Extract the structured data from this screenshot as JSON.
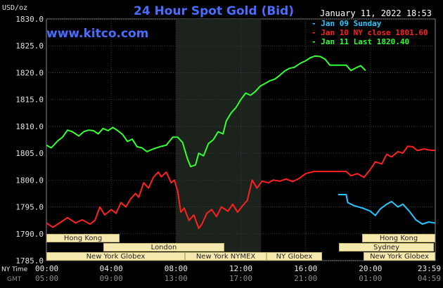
{
  "title": "24 Hour Spot Gold (Bid)",
  "watermark": "www.kitco.com",
  "unit": "USD/oz",
  "timestamp": "January 11, 2022 18:53",
  "row_labels": {
    "ny": "NY Time",
    "gmt": "GMT"
  },
  "legend": [
    {
      "dash": "-",
      "label": "Jan 09 Sunday",
      "color": "#22c8ff"
    },
    {
      "dash": "-",
      "label": "Jan 10 NY close 1801.60",
      "color": "#ff2020"
    },
    {
      "dash": "-",
      "label": "Jan 11 Last 1820.40",
      "color": "#33ff33"
    }
  ],
  "sessions": {
    "row1": [
      "Hong Kong",
      "Hong Kong"
    ],
    "row2": [
      "London",
      "Sydney"
    ],
    "row3": [
      "New York Globex",
      "New York NYMEX",
      "NY Globex",
      "New York Globex"
    ]
  },
  "chart_data": {
    "type": "line",
    "title": "24 Hour Spot Gold (Bid)",
    "ylabel": "USD/oz",
    "ylim": [
      1785,
      1830
    ],
    "y_ticks": [
      "1830.0",
      "1825.0",
      "1820.0",
      "1815.0",
      "1810.0",
      "1805.0",
      "1800.0",
      "1795.0",
      "1790.0",
      "1785.0"
    ],
    "x_ticks_ny": [
      "00:00",
      "04:00",
      "08:00",
      "12:00",
      "16:00",
      "20:00",
      "23:59"
    ],
    "x_ticks_gmt": [
      "05:00",
      "09:00",
      "13:00",
      "17:00",
      "21:00",
      "01:00",
      "04:59"
    ],
    "grid": true,
    "highlight_band_hours": [
      8.0,
      13.25
    ],
    "series": [
      {
        "name": "Jan 09 Sunday",
        "color": "#22c8ff",
        "points": [
          [
            18.0,
            1797.3
          ],
          [
            18.5,
            1797.3
          ],
          [
            18.6,
            1795.8
          ],
          [
            19.0,
            1795.2
          ],
          [
            19.5,
            1794.8
          ],
          [
            20.0,
            1794.2
          ],
          [
            20.3,
            1793.4
          ],
          [
            20.6,
            1794.6
          ],
          [
            21.0,
            1795.5
          ],
          [
            21.3,
            1796.0
          ],
          [
            21.7,
            1795.0
          ],
          [
            22.0,
            1795.5
          ],
          [
            22.4,
            1794.2
          ],
          [
            22.8,
            1792.6
          ],
          [
            23.2,
            1791.8
          ],
          [
            23.6,
            1792.2
          ],
          [
            23.99,
            1792.0
          ]
        ]
      },
      {
        "name": "Jan 10 NY close 1801.60",
        "color": "#ff2020",
        "points": [
          [
            0.0,
            1792.0
          ],
          [
            0.4,
            1791.2
          ],
          [
            0.9,
            1792.2
          ],
          [
            1.3,
            1793.0
          ],
          [
            1.8,
            1792.0
          ],
          [
            2.2,
            1792.6
          ],
          [
            2.7,
            1791.8
          ],
          [
            3.0,
            1792.5
          ],
          [
            3.3,
            1795.0
          ],
          [
            3.6,
            1793.5
          ],
          [
            4.0,
            1794.5
          ],
          [
            4.3,
            1793.8
          ],
          [
            4.6,
            1795.8
          ],
          [
            4.9,
            1795.0
          ],
          [
            5.2,
            1796.5
          ],
          [
            5.5,
            1797.5
          ],
          [
            5.7,
            1796.8
          ],
          [
            6.0,
            1799.5
          ],
          [
            6.3,
            1798.5
          ],
          [
            6.6,
            1800.5
          ],
          [
            6.9,
            1801.5
          ],
          [
            7.1,
            1800.6
          ],
          [
            7.4,
            1801.5
          ],
          [
            7.7,
            1799.5
          ],
          [
            7.9,
            1800.0
          ],
          [
            8.1,
            1798.0
          ],
          [
            8.3,
            1794.0
          ],
          [
            8.5,
            1794.8
          ],
          [
            8.8,
            1792.5
          ],
          [
            9.1,
            1793.5
          ],
          [
            9.4,
            1791.0
          ],
          [
            9.6,
            1791.8
          ],
          [
            9.9,
            1793.8
          ],
          [
            10.2,
            1794.5
          ],
          [
            10.5,
            1793.2
          ],
          [
            10.8,
            1795.0
          ],
          [
            11.2,
            1794.2
          ],
          [
            11.5,
            1795.5
          ],
          [
            11.8,
            1794.0
          ],
          [
            12.1,
            1795.2
          ],
          [
            12.4,
            1796.2
          ],
          [
            12.7,
            1800.0
          ],
          [
            13.0,
            1798.5
          ],
          [
            13.3,
            1799.8
          ],
          [
            13.7,
            1799.5
          ],
          [
            14.0,
            1800.0
          ],
          [
            14.4,
            1799.8
          ],
          [
            14.8,
            1800.2
          ],
          [
            15.2,
            1799.7
          ],
          [
            15.6,
            1800.3
          ],
          [
            16.0,
            1801.2
          ],
          [
            16.5,
            1801.6
          ],
          [
            17.0,
            1801.6
          ],
          [
            17.5,
            1801.6
          ],
          [
            18.0,
            1801.6
          ],
          [
            18.5,
            1801.6
          ],
          [
            18.8,
            1800.8
          ],
          [
            19.2,
            1801.2
          ],
          [
            19.6,
            1800.5
          ],
          [
            20.0,
            1802.0
          ],
          [
            20.3,
            1803.4
          ],
          [
            20.7,
            1803.0
          ],
          [
            21.0,
            1804.8
          ],
          [
            21.3,
            1804.3
          ],
          [
            21.7,
            1805.3
          ],
          [
            22.0,
            1805.0
          ],
          [
            22.3,
            1806.3
          ],
          [
            22.6,
            1806.2
          ],
          [
            22.9,
            1805.5
          ],
          [
            23.3,
            1805.8
          ],
          [
            23.6,
            1805.6
          ],
          [
            23.99,
            1805.5
          ]
        ]
      },
      {
        "name": "Jan 11 Last 1820.40",
        "color": "#33ff33",
        "points": [
          [
            0.0,
            1806.5
          ],
          [
            0.3,
            1806.0
          ],
          [
            0.7,
            1807.3
          ],
          [
            1.0,
            1808.0
          ],
          [
            1.3,
            1809.3
          ],
          [
            1.6,
            1809.0
          ],
          [
            2.0,
            1808.2
          ],
          [
            2.3,
            1809.0
          ],
          [
            2.6,
            1809.3
          ],
          [
            2.9,
            1809.2
          ],
          [
            3.2,
            1808.6
          ],
          [
            3.5,
            1809.6
          ],
          [
            3.8,
            1809.2
          ],
          [
            4.1,
            1809.8
          ],
          [
            4.4,
            1809.2
          ],
          [
            4.7,
            1808.5
          ],
          [
            5.0,
            1807.2
          ],
          [
            5.3,
            1807.6
          ],
          [
            5.6,
            1806.2
          ],
          [
            5.9,
            1806.0
          ],
          [
            6.2,
            1805.3
          ],
          [
            6.6,
            1805.8
          ],
          [
            7.0,
            1806.2
          ],
          [
            7.4,
            1806.5
          ],
          [
            7.8,
            1808.0
          ],
          [
            8.1,
            1808.0
          ],
          [
            8.4,
            1807.0
          ],
          [
            8.7,
            1804.0
          ],
          [
            8.9,
            1802.5
          ],
          [
            9.2,
            1802.8
          ],
          [
            9.4,
            1805.0
          ],
          [
            9.7,
            1804.5
          ],
          [
            10.0,
            1806.8
          ],
          [
            10.3,
            1807.5
          ],
          [
            10.6,
            1809.0
          ],
          [
            10.9,
            1808.6
          ],
          [
            11.1,
            1811.0
          ],
          [
            11.4,
            1812.5
          ],
          [
            11.7,
            1813.5
          ],
          [
            12.0,
            1815.0
          ],
          [
            12.3,
            1816.2
          ],
          [
            12.6,
            1815.8
          ],
          [
            12.9,
            1816.5
          ],
          [
            13.2,
            1817.5
          ],
          [
            13.5,
            1818.0
          ],
          [
            13.8,
            1818.5
          ],
          [
            14.1,
            1818.8
          ],
          [
            14.4,
            1819.5
          ],
          [
            14.7,
            1820.3
          ],
          [
            15.0,
            1820.8
          ],
          [
            15.3,
            1821.0
          ],
          [
            15.7,
            1821.8
          ],
          [
            16.0,
            1822.2
          ],
          [
            16.3,
            1822.8
          ],
          [
            16.6,
            1823.1
          ],
          [
            16.9,
            1823.0
          ],
          [
            17.2,
            1822.5
          ],
          [
            17.5,
            1821.4
          ],
          [
            18.0,
            1821.4
          ],
          [
            18.5,
            1821.4
          ],
          [
            18.8,
            1820.4
          ],
          [
            19.1,
            1820.9
          ],
          [
            19.4,
            1821.3
          ],
          [
            19.7,
            1820.4
          ]
        ]
      }
    ]
  }
}
